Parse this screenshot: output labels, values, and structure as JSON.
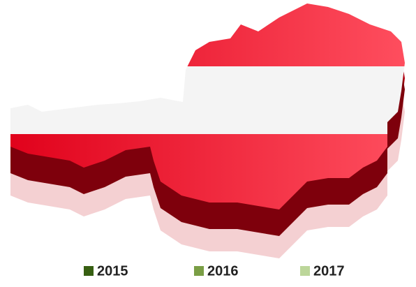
{
  "legend": {
    "items": [
      {
        "label": "2015",
        "color": "#375f12"
      },
      {
        "label": "2016",
        "color": "#7a9e45"
      },
      {
        "label": "2017",
        "color": "#bcd69a"
      }
    ]
  }
}
